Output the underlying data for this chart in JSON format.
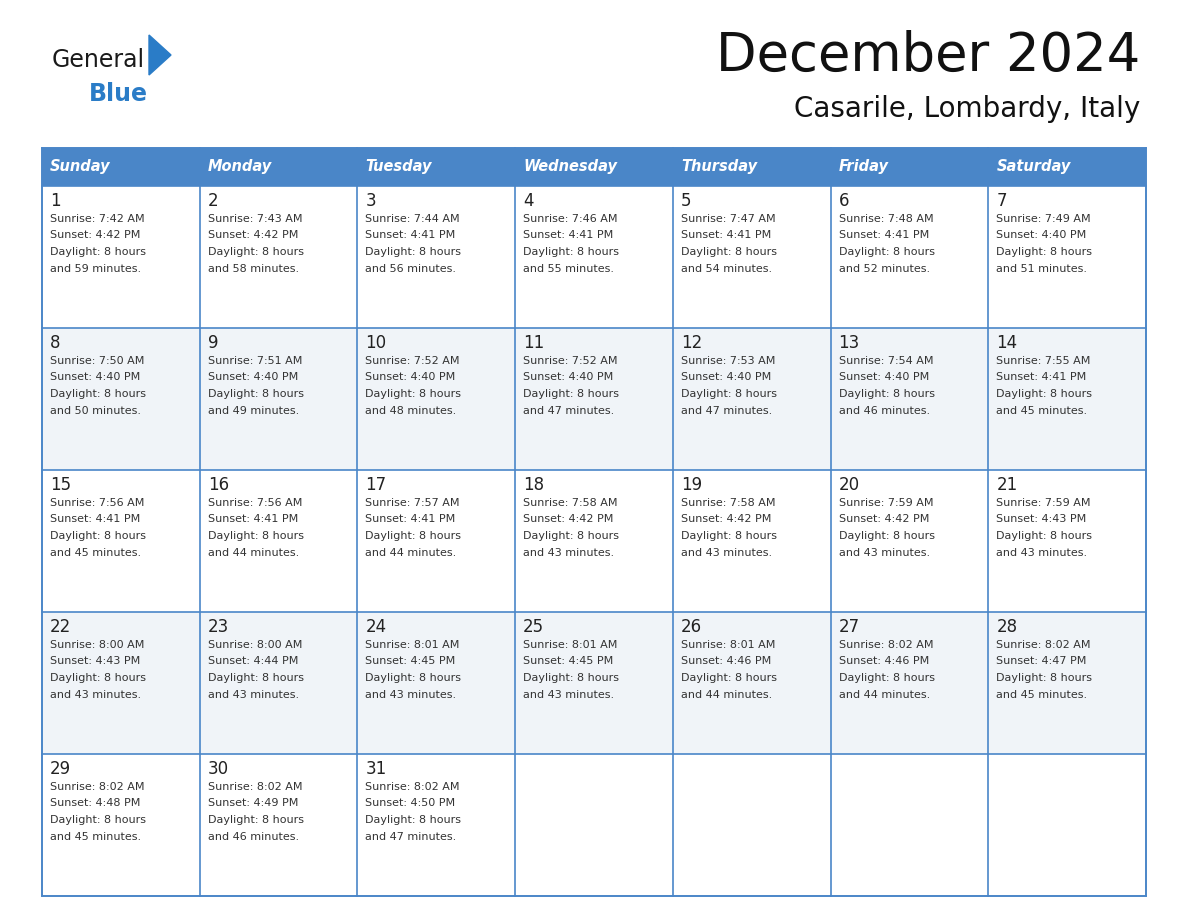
{
  "title": "December 2024",
  "subtitle": "Casarile, Lombardy, Italy",
  "header_color": "#4a86c8",
  "header_text_color": "#ffffff",
  "cell_bg_color_odd": "#ffffff",
  "cell_bg_color_even": "#f0f4f8",
  "border_color": "#4a86c8",
  "text_color": "#333333",
  "days_of_week": [
    "Sunday",
    "Monday",
    "Tuesday",
    "Wednesday",
    "Thursday",
    "Friday",
    "Saturday"
  ],
  "weeks": [
    [
      {
        "day": 1,
        "sunrise": "7:42 AM",
        "sunset": "4:42 PM",
        "daylight": "8 hours and 59 minutes"
      },
      {
        "day": 2,
        "sunrise": "7:43 AM",
        "sunset": "4:42 PM",
        "daylight": "8 hours and 58 minutes"
      },
      {
        "day": 3,
        "sunrise": "7:44 AM",
        "sunset": "4:41 PM",
        "daylight": "8 hours and 56 minutes"
      },
      {
        "day": 4,
        "sunrise": "7:46 AM",
        "sunset": "4:41 PM",
        "daylight": "8 hours and 55 minutes"
      },
      {
        "day": 5,
        "sunrise": "7:47 AM",
        "sunset": "4:41 PM",
        "daylight": "8 hours and 54 minutes"
      },
      {
        "day": 6,
        "sunrise": "7:48 AM",
        "sunset": "4:41 PM",
        "daylight": "8 hours and 52 minutes"
      },
      {
        "day": 7,
        "sunrise": "7:49 AM",
        "sunset": "4:40 PM",
        "daylight": "8 hours and 51 minutes"
      }
    ],
    [
      {
        "day": 8,
        "sunrise": "7:50 AM",
        "sunset": "4:40 PM",
        "daylight": "8 hours and 50 minutes"
      },
      {
        "day": 9,
        "sunrise": "7:51 AM",
        "sunset": "4:40 PM",
        "daylight": "8 hours and 49 minutes"
      },
      {
        "day": 10,
        "sunrise": "7:52 AM",
        "sunset": "4:40 PM",
        "daylight": "8 hours and 48 minutes"
      },
      {
        "day": 11,
        "sunrise": "7:52 AM",
        "sunset": "4:40 PM",
        "daylight": "8 hours and 47 minutes"
      },
      {
        "day": 12,
        "sunrise": "7:53 AM",
        "sunset": "4:40 PM",
        "daylight": "8 hours and 47 minutes"
      },
      {
        "day": 13,
        "sunrise": "7:54 AM",
        "sunset": "4:40 PM",
        "daylight": "8 hours and 46 minutes"
      },
      {
        "day": 14,
        "sunrise": "7:55 AM",
        "sunset": "4:41 PM",
        "daylight": "8 hours and 45 minutes"
      }
    ],
    [
      {
        "day": 15,
        "sunrise": "7:56 AM",
        "sunset": "4:41 PM",
        "daylight": "8 hours and 45 minutes"
      },
      {
        "day": 16,
        "sunrise": "7:56 AM",
        "sunset": "4:41 PM",
        "daylight": "8 hours and 44 minutes"
      },
      {
        "day": 17,
        "sunrise": "7:57 AM",
        "sunset": "4:41 PM",
        "daylight": "8 hours and 44 minutes"
      },
      {
        "day": 18,
        "sunrise": "7:58 AM",
        "sunset": "4:42 PM",
        "daylight": "8 hours and 43 minutes"
      },
      {
        "day": 19,
        "sunrise": "7:58 AM",
        "sunset": "4:42 PM",
        "daylight": "8 hours and 43 minutes"
      },
      {
        "day": 20,
        "sunrise": "7:59 AM",
        "sunset": "4:42 PM",
        "daylight": "8 hours and 43 minutes"
      },
      {
        "day": 21,
        "sunrise": "7:59 AM",
        "sunset": "4:43 PM",
        "daylight": "8 hours and 43 minutes"
      }
    ],
    [
      {
        "day": 22,
        "sunrise": "8:00 AM",
        "sunset": "4:43 PM",
        "daylight": "8 hours and 43 minutes"
      },
      {
        "day": 23,
        "sunrise": "8:00 AM",
        "sunset": "4:44 PM",
        "daylight": "8 hours and 43 minutes"
      },
      {
        "day": 24,
        "sunrise": "8:01 AM",
        "sunset": "4:45 PM",
        "daylight": "8 hours and 43 minutes"
      },
      {
        "day": 25,
        "sunrise": "8:01 AM",
        "sunset": "4:45 PM",
        "daylight": "8 hours and 43 minutes"
      },
      {
        "day": 26,
        "sunrise": "8:01 AM",
        "sunset": "4:46 PM",
        "daylight": "8 hours and 44 minutes"
      },
      {
        "day": 27,
        "sunrise": "8:02 AM",
        "sunset": "4:46 PM",
        "daylight": "8 hours and 44 minutes"
      },
      {
        "day": 28,
        "sunrise": "8:02 AM",
        "sunset": "4:47 PM",
        "daylight": "8 hours and 45 minutes"
      }
    ],
    [
      {
        "day": 29,
        "sunrise": "8:02 AM",
        "sunset": "4:48 PM",
        "daylight": "8 hours and 45 minutes"
      },
      {
        "day": 30,
        "sunrise": "8:02 AM",
        "sunset": "4:49 PM",
        "daylight": "8 hours and 46 minutes"
      },
      {
        "day": 31,
        "sunrise": "8:02 AM",
        "sunset": "4:50 PM",
        "daylight": "8 hours and 47 minutes"
      },
      null,
      null,
      null,
      null
    ]
  ]
}
